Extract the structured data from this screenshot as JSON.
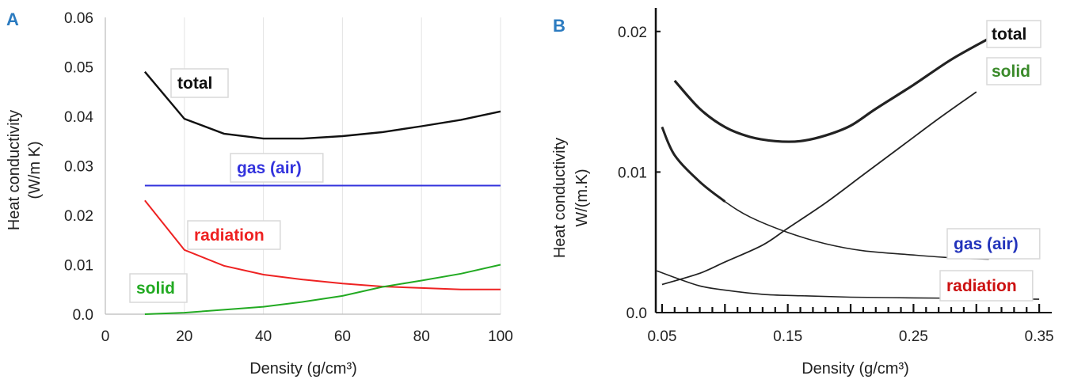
{
  "chart_data": [
    {
      "panel": "A",
      "type": "line",
      "xlabel": "Density (g/cm³)",
      "ylabel_line1": "Heat conductivity",
      "ylabel_line2": "(W/m K)",
      "xlim": [
        0,
        100
      ],
      "ylim": [
        0,
        0.06
      ],
      "x_ticks": [
        0,
        20,
        40,
        60,
        80,
        100
      ],
      "y_ticks": [
        "0.0",
        "0.01",
        "0.02",
        "0.03",
        "0.04",
        "0.05",
        "0.06"
      ],
      "grid": "vertical",
      "series": [
        {
          "name": "total",
          "color": "#111111",
          "points": [
            [
              10,
              0.049
            ],
            [
              20,
              0.0395
            ],
            [
              30,
              0.0365
            ],
            [
              40,
              0.0355
            ],
            [
              50,
              0.0355
            ],
            [
              60,
              0.036
            ],
            [
              70,
              0.0368
            ],
            [
              80,
              0.038
            ],
            [
              90,
              0.0393
            ],
            [
              100,
              0.041
            ]
          ]
        },
        {
          "name": "gas (air)",
          "color": "#3333dd",
          "points": [
            [
              10,
              0.026
            ],
            [
              100,
              0.026
            ]
          ]
        },
        {
          "name": "radiation",
          "color": "#ee2222",
          "points": [
            [
              10,
              0.023
            ],
            [
              20,
              0.013
            ],
            [
              30,
              0.0098
            ],
            [
              40,
              0.008
            ],
            [
              50,
              0.007
            ],
            [
              60,
              0.0062
            ],
            [
              70,
              0.0056
            ],
            [
              80,
              0.0053
            ],
            [
              90,
              0.005
            ],
            [
              100,
              0.005
            ]
          ]
        },
        {
          "name": "solid",
          "color": "#22aa22",
          "points": [
            [
              10,
              0
            ],
            [
              20,
              0.0003
            ],
            [
              30,
              0.0009
            ],
            [
              40,
              0.0015
            ],
            [
              50,
              0.0025
            ],
            [
              60,
              0.0037
            ],
            [
              70,
              0.0055
            ],
            [
              80,
              0.0068
            ],
            [
              90,
              0.0082
            ],
            [
              100,
              0.01
            ]
          ]
        }
      ]
    },
    {
      "panel": "B",
      "type": "line",
      "xlabel": "Density (g/cm³)",
      "ylabel_line1": "Heat conductivity",
      "ylabel_line2": "W/(m.K)",
      "xlim": [
        0.045,
        0.36
      ],
      "ylim": [
        0,
        0.021
      ],
      "x_ticks": [
        "0.05",
        "0.15",
        "0.25",
        "0.35"
      ],
      "y_ticks": [
        "0.0",
        "0.01",
        "0.02"
      ],
      "series": [
        {
          "name": "total",
          "label_color": "#111111",
          "points": [
            [
              0.06,
              0.0165
            ],
            [
              0.08,
              0.0145
            ],
            [
              0.1,
              0.0132
            ],
            [
              0.12,
              0.0125
            ],
            [
              0.14,
              0.0122
            ],
            [
              0.16,
              0.0122
            ],
            [
              0.18,
              0.0126
            ],
            [
              0.2,
              0.0133
            ],
            [
              0.22,
              0.0145
            ],
            [
              0.25,
              0.0162
            ],
            [
              0.28,
              0.018
            ],
            [
              0.31,
              0.0195
            ]
          ]
        },
        {
          "name": "solid",
          "label_color": "#3a8a2a",
          "points": [
            [
              0.05,
              0.002
            ],
            [
              0.08,
              0.0028
            ],
            [
              0.1,
              0.0036
            ],
            [
              0.13,
              0.0048
            ],
            [
              0.15,
              0.006
            ],
            [
              0.18,
              0.0078
            ],
            [
              0.21,
              0.0098
            ],
            [
              0.24,
              0.0118
            ],
            [
              0.27,
              0.0138
            ],
            [
              0.3,
              0.0157
            ]
          ]
        },
        {
          "name": "gas (air)",
          "label_color": "#2233bb",
          "points": [
            [
              0.05,
              0.0132
            ],
            [
              0.06,
              0.0112
            ],
            [
              0.08,
              0.0093
            ],
            [
              0.1,
              0.0079
            ],
            [
              0.12,
              0.0068
            ],
            [
              0.15,
              0.0057
            ],
            [
              0.18,
              0.0049
            ],
            [
              0.21,
              0.0044
            ],
            [
              0.25,
              0.0041
            ],
            [
              0.28,
              0.0039
            ],
            [
              0.31,
              0.0038
            ]
          ]
        },
        {
          "name": "radiation",
          "label_color": "#cc1111",
          "points": [
            [
              0.045,
              0.003
            ],
            [
              0.06,
              0.0025
            ],
            [
              0.08,
              0.0019
            ],
            [
              0.1,
              0.0016
            ],
            [
              0.13,
              0.0013
            ],
            [
              0.16,
              0.0012
            ],
            [
              0.2,
              0.0011
            ],
            [
              0.25,
              0.00105
            ],
            [
              0.3,
              0.001
            ],
            [
              0.35,
              0.00095
            ]
          ]
        }
      ]
    }
  ]
}
